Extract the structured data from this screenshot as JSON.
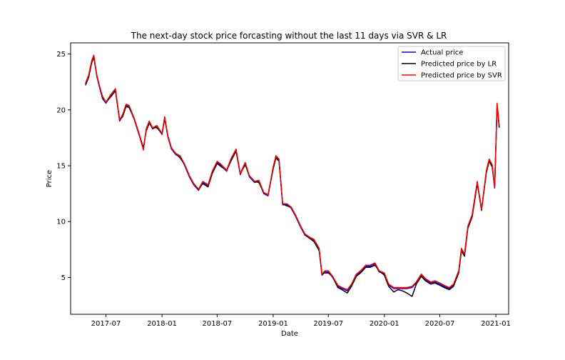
{
  "chart_data": {
    "type": "line",
    "title": "The next-day stock price forcasting without the last 11 days via SVR & LR",
    "xlabel": "Date",
    "ylabel": "Price",
    "xlim": [
      "2017-03-07",
      "2021-02-12"
    ],
    "ylim": [
      1.7,
      26.0
    ],
    "x_ticks": [
      "2017-07",
      "2018-01",
      "2018-07",
      "2019-01",
      "2019-07",
      "2020-01",
      "2020-07",
      "2021-01"
    ],
    "y_ticks": [
      5,
      10,
      15,
      20,
      25
    ],
    "grid": false,
    "legend_position": "top-right",
    "x": [
      "2017-04-25",
      "2017-05-05",
      "2017-05-15",
      "2017-05-22",
      "2017-06-01",
      "2017-06-10",
      "2017-06-20",
      "2017-07-01",
      "2017-07-15",
      "2017-08-01",
      "2017-08-15",
      "2017-08-25",
      "2017-09-05",
      "2017-09-15",
      "2017-10-01",
      "2017-10-15",
      "2017-11-01",
      "2017-11-10",
      "2017-11-20",
      "2017-12-01",
      "2017-12-15",
      "2018-01-01",
      "2018-01-10",
      "2018-01-20",
      "2018-02-01",
      "2018-02-15",
      "2018-03-01",
      "2018-03-15",
      "2018-04-01",
      "2018-04-15",
      "2018-05-01",
      "2018-05-15",
      "2018-06-01",
      "2018-06-15",
      "2018-07-01",
      "2018-07-15",
      "2018-08-01",
      "2018-08-15",
      "2018-09-01",
      "2018-09-15",
      "2018-10-01",
      "2018-10-15",
      "2018-11-01",
      "2018-11-15",
      "2018-12-01",
      "2018-12-15",
      "2019-01-01",
      "2019-01-10",
      "2019-01-20",
      "2019-02-01",
      "2019-02-15",
      "2019-03-01",
      "2019-03-15",
      "2019-04-01",
      "2019-04-15",
      "2019-05-01",
      "2019-05-15",
      "2019-06-01",
      "2019-06-10",
      "2019-06-20",
      "2019-07-01",
      "2019-07-15",
      "2019-08-01",
      "2019-08-15",
      "2019-09-01",
      "2019-09-15",
      "2019-10-01",
      "2019-10-15",
      "2019-11-01",
      "2019-11-15",
      "2019-12-01",
      "2019-12-15",
      "2020-01-01",
      "2020-01-15",
      "2020-02-01",
      "2020-02-15",
      "2020-03-01",
      "2020-03-15",
      "2020-04-01",
      "2020-04-15",
      "2020-05-01",
      "2020-05-15",
      "2020-06-01",
      "2020-06-15",
      "2020-07-01",
      "2020-07-15",
      "2020-08-01",
      "2020-08-15",
      "2020-09-01",
      "2020-09-10",
      "2020-09-20",
      "2020-10-01",
      "2020-10-15",
      "2020-11-01",
      "2020-11-15",
      "2020-12-01",
      "2020-12-10",
      "2020-12-20",
      "2020-12-28",
      "2021-01-05",
      "2021-01-12"
    ],
    "series": [
      {
        "name": "Actual price",
        "color": "#0000ff",
        "values": [
          22.3,
          23.0,
          24.3,
          24.8,
          23.0,
          22.0,
          21.0,
          20.6,
          21.2,
          21.8,
          19.0,
          19.5,
          20.4,
          20.3,
          19.2,
          18.0,
          16.5,
          18.2,
          18.9,
          18.3,
          18.5,
          17.8,
          19.3,
          17.6,
          16.5,
          16.0,
          15.8,
          15.1,
          14.0,
          13.3,
          12.8,
          13.5,
          13.2,
          14.4,
          15.3,
          15.0,
          14.5,
          15.5,
          16.4,
          14.2,
          15.2,
          14.0,
          13.5,
          13.6,
          12.5,
          12.3,
          14.8,
          15.8,
          15.5,
          11.5,
          11.5,
          11.2,
          10.5,
          9.5,
          8.8,
          8.5,
          8.3,
          7.5,
          5.2,
          5.5,
          5.5,
          5.0,
          4.2,
          4.0,
          3.8,
          4.3,
          5.2,
          5.5,
          6.0,
          6.0,
          6.2,
          5.5,
          5.3,
          4.3,
          4.0,
          4.0,
          4.0,
          4.0,
          4.1,
          4.5,
          5.2,
          4.8,
          4.5,
          4.6,
          4.4,
          4.2,
          4.0,
          4.3,
          5.5,
          7.5,
          7.0,
          9.5,
          10.5,
          13.5,
          11.0,
          14.5,
          15.5,
          15.0,
          13.0,
          20.5,
          18.5
        ]
      },
      {
        "name": "Predicted price by LR",
        "color": "#000000",
        "values": [
          22.2,
          22.9,
          24.2,
          24.7,
          23.1,
          22.1,
          21.1,
          20.7,
          21.1,
          21.7,
          19.1,
          19.4,
          20.3,
          20.2,
          19.3,
          18.1,
          16.6,
          18.1,
          18.8,
          18.4,
          18.4,
          17.9,
          19.2,
          17.7,
          16.6,
          16.1,
          15.7,
          15.2,
          14.1,
          13.4,
          12.9,
          13.4,
          13.1,
          14.3,
          15.2,
          14.9,
          14.6,
          15.4,
          16.3,
          14.3,
          15.1,
          14.1,
          13.6,
          13.5,
          12.6,
          12.4,
          14.7,
          15.7,
          15.4,
          11.6,
          11.4,
          11.3,
          10.6,
          9.6,
          8.9,
          8.5,
          8.2,
          7.4,
          5.3,
          5.4,
          5.4,
          5.1,
          4.1,
          3.9,
          3.6,
          4.2,
          5.1,
          5.4,
          5.9,
          5.9,
          6.1,
          5.6,
          5.2,
          4.2,
          3.7,
          3.9,
          3.8,
          3.6,
          3.3,
          4.4,
          5.1,
          4.7,
          4.4,
          4.5,
          4.3,
          4.1,
          3.9,
          4.2,
          5.4,
          7.4,
          6.9,
          9.4,
          10.4,
          13.4,
          11.1,
          14.4,
          15.4,
          14.9,
          13.1,
          20.4,
          18.4
        ]
      },
      {
        "name": "Predicted price by SVR",
        "color": "#ff0000",
        "values": [
          22.4,
          23.1,
          24.4,
          24.9,
          23.1,
          22.1,
          21.2,
          20.7,
          21.3,
          21.9,
          19.1,
          19.6,
          20.5,
          20.4,
          19.3,
          18.1,
          16.4,
          18.3,
          19.0,
          18.4,
          18.6,
          17.9,
          19.4,
          17.7,
          16.6,
          16.1,
          15.9,
          15.2,
          14.1,
          13.4,
          12.9,
          13.6,
          13.3,
          14.5,
          15.4,
          15.1,
          14.6,
          15.6,
          16.5,
          14.3,
          15.3,
          14.1,
          13.6,
          13.7,
          12.6,
          12.4,
          14.9,
          15.9,
          15.6,
          11.6,
          11.6,
          11.3,
          10.6,
          9.6,
          8.9,
          8.6,
          8.4,
          7.6,
          5.3,
          5.6,
          5.6,
          5.1,
          4.3,
          4.1,
          3.9,
          4.4,
          5.3,
          5.6,
          6.1,
          6.1,
          6.3,
          5.6,
          5.4,
          4.4,
          4.1,
          4.1,
          4.1,
          4.1,
          4.2,
          4.6,
          5.3,
          4.9,
          4.6,
          4.7,
          4.5,
          4.3,
          4.1,
          4.4,
          5.6,
          7.6,
          7.1,
          9.6,
          10.6,
          13.6,
          11.1,
          14.6,
          15.6,
          15.1,
          13.1,
          20.6,
          18.6
        ]
      }
    ]
  }
}
